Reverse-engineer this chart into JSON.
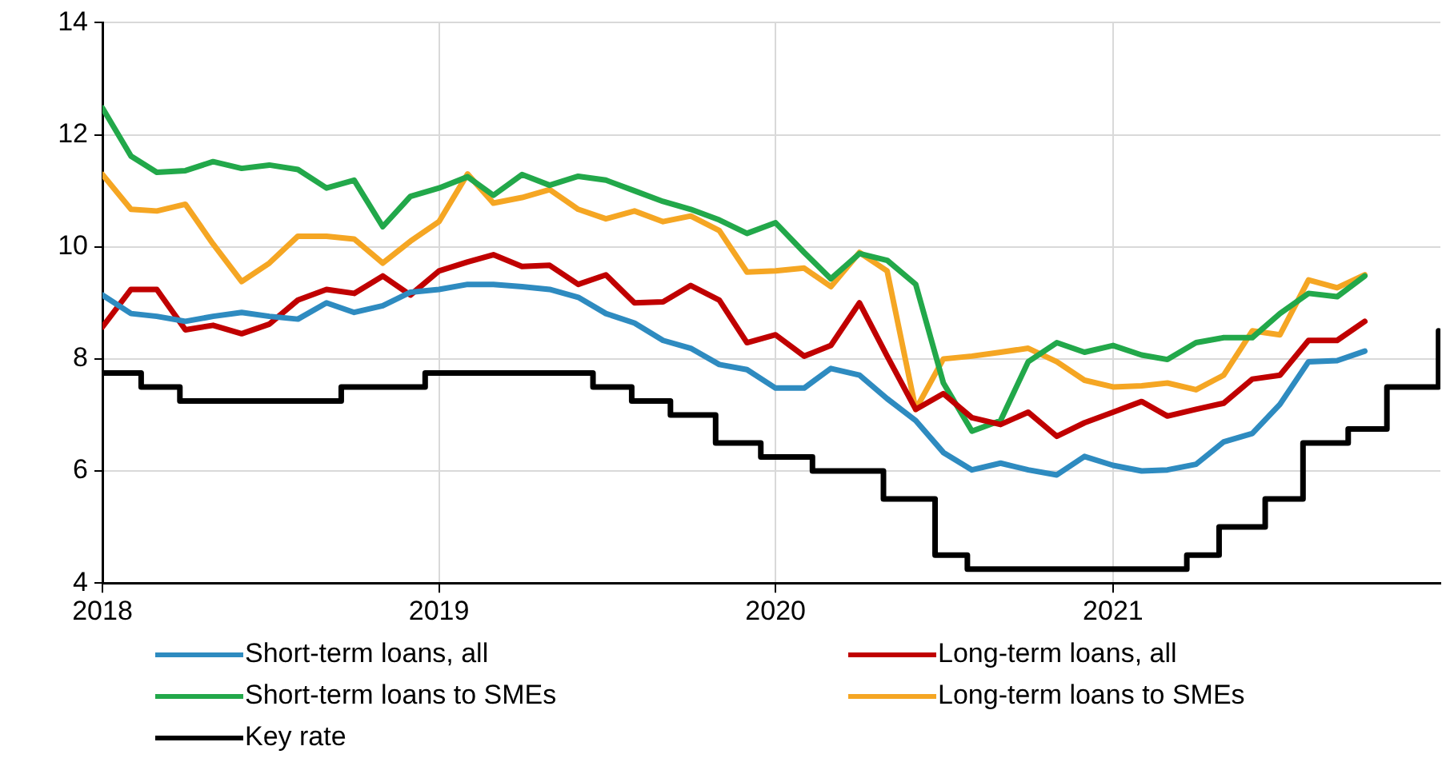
{
  "chart_data": {
    "type": "line",
    "x": [
      "2018-01",
      "2018-02",
      "2018-03",
      "2018-04",
      "2018-05",
      "2018-06",
      "2018-07",
      "2018-08",
      "2018-09",
      "2018-10",
      "2018-11",
      "2018-12",
      "2019-01",
      "2019-02",
      "2019-03",
      "2019-04",
      "2019-05",
      "2019-06",
      "2019-07",
      "2019-08",
      "2019-09",
      "2019-10",
      "2019-11",
      "2019-12",
      "2020-01",
      "2020-02",
      "2020-03",
      "2020-04",
      "2020-05",
      "2020-06",
      "2020-07",
      "2020-08",
      "2020-09",
      "2020-10",
      "2020-11",
      "2020-12",
      "2021-01",
      "2021-02",
      "2021-03",
      "2021-04",
      "2021-05",
      "2021-06",
      "2021-07",
      "2021-08",
      "2021-09",
      "2021-10"
    ],
    "series": [
      {
        "name": "Short-term loans, all",
        "color": "#2e8bc0",
        "values": [
          9.14,
          8.81,
          8.76,
          8.67,
          8.76,
          8.83,
          8.76,
          8.71,
          9.0,
          8.83,
          8.95,
          9.19,
          9.24,
          9.33,
          9.33,
          9.29,
          9.24,
          9.1,
          8.81,
          8.64,
          8.33,
          8.19,
          7.9,
          7.81,
          7.48,
          7.48,
          7.83,
          7.71,
          7.29,
          6.9,
          6.33,
          6.02,
          6.14,
          6.02,
          5.93,
          6.26,
          6.1,
          6.0,
          6.02,
          6.12,
          6.52,
          6.67,
          7.19,
          7.95,
          7.97,
          8.14
        ]
      },
      {
        "name": "Long-term loans, all",
        "color": "#c00000",
        "values": [
          8.57,
          9.24,
          9.24,
          8.52,
          8.6,
          8.45,
          8.62,
          9.05,
          9.24,
          9.17,
          9.48,
          9.14,
          9.57,
          9.73,
          9.86,
          9.65,
          9.67,
          9.33,
          9.5,
          9.0,
          9.02,
          9.31,
          9.05,
          8.29,
          8.43,
          8.05,
          8.24,
          9.0,
          8.05,
          7.1,
          7.38,
          6.95,
          6.83,
          7.05,
          6.62,
          6.86,
          7.05,
          7.24,
          6.98,
          7.1,
          7.21,
          7.64,
          7.71,
          8.33,
          8.33,
          8.67
        ]
      },
      {
        "name": "Short-term loans to SMEs",
        "color": "#22a84a",
        "values": [
          12.48,
          11.62,
          11.33,
          11.36,
          11.52,
          11.4,
          11.46,
          11.38,
          11.05,
          11.19,
          10.36,
          10.9,
          11.05,
          11.25,
          10.92,
          11.29,
          11.1,
          11.26,
          11.19,
          11.0,
          10.81,
          10.67,
          10.48,
          10.24,
          10.43,
          9.9,
          9.43,
          9.88,
          9.76,
          9.33,
          7.57,
          6.71,
          6.9,
          7.95,
          8.29,
          8.12,
          8.24,
          8.07,
          7.99,
          8.29,
          8.38,
          8.38,
          8.81,
          9.17,
          9.11,
          9.48
        ]
      },
      {
        "name": "Long-term loans to SMEs",
        "color": "#f5a623",
        "values": [
          11.29,
          10.67,
          10.64,
          10.76,
          10.05,
          9.38,
          9.71,
          10.19,
          10.19,
          10.14,
          9.71,
          10.1,
          10.45,
          11.3,
          10.78,
          10.88,
          11.02,
          10.67,
          10.5,
          10.64,
          10.45,
          10.55,
          10.29,
          9.55,
          9.57,
          9.62,
          9.29,
          9.9,
          9.57,
          7.1,
          8.0,
          8.05,
          8.12,
          8.19,
          7.95,
          7.62,
          7.5,
          7.52,
          7.57,
          7.45,
          7.71,
          8.5,
          8.43,
          9.41,
          9.27,
          9.5
        ]
      },
      {
        "name": "Key rate",
        "color": "#000000",
        "type": "step",
        "x": [
          "2018-01-01",
          "2018-02-12",
          "2018-03-26",
          "2018-09-17",
          "2018-12-17",
          "2019-06-17",
          "2019-07-29",
          "2019-09-09",
          "2019-10-28",
          "2019-12-16",
          "2020-02-10",
          "2020-04-27",
          "2020-06-22",
          "2020-07-27",
          "2021-03-22",
          "2021-04-26",
          "2021-06-15",
          "2021-07-26",
          "2021-09-13",
          "2021-10-25",
          "2021-12-20"
        ],
        "values": [
          7.75,
          7.5,
          7.25,
          7.5,
          7.75,
          7.5,
          7.25,
          7.0,
          6.5,
          6.25,
          6.0,
          5.5,
          4.5,
          4.25,
          4.5,
          5.0,
          5.5,
          6.5,
          6.75,
          7.5,
          8.5
        ]
      }
    ],
    "xlim": [
      "2018-01-01",
      "2021-12-22"
    ],
    "xticks": [
      "2018",
      "2019",
      "2020",
      "2021"
    ],
    "ylim": [
      4,
      14
    ],
    "yticks": [
      4,
      6,
      8,
      10,
      12,
      14
    ],
    "grid": true,
    "legend": "bottom",
    "marker": "none"
  }
}
